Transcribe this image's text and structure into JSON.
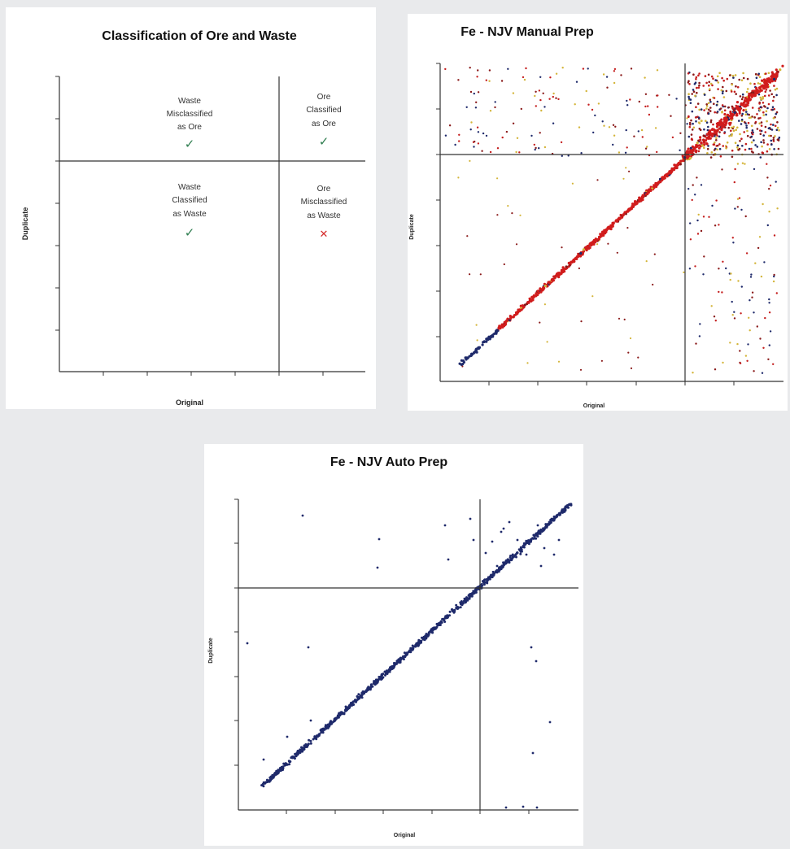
{
  "chart_data": [
    {
      "type": "scatter",
      "title": "Classification of Ore and Waste",
      "xlabel": "Original",
      "ylabel": "Duplicate",
      "quadrants": [
        {
          "position": "top-left",
          "lines": [
            "Waste",
            "Misclassified",
            "as Ore"
          ],
          "mark": "check"
        },
        {
          "position": "top-right",
          "lines": [
            "Ore",
            "Classified",
            "as Ore"
          ],
          "mark": "check"
        },
        {
          "position": "bottom-left",
          "lines": [
            "Waste",
            "Classified",
            "as Waste"
          ],
          "mark": "check"
        },
        {
          "position": "bottom-right",
          "lines": [
            "Ore",
            "Misclassified",
            "as Waste"
          ],
          "mark": "cross"
        }
      ],
      "mark_glyphs": {
        "check": "✓",
        "cross": "✕"
      },
      "colors": {
        "check": "#2e7d4f",
        "cross": "#d42a2a"
      }
    },
    {
      "type": "scatter",
      "title": "Fe - NJV Manual Prep",
      "xlabel": "Original",
      "ylabel": "Duplicate",
      "point_colors": [
        "#c41e1e",
        "#1f2a6b",
        "#d4b53a",
        "#8a1a1a"
      ],
      "trend_color": "#d11c1c"
    },
    {
      "type": "scatter",
      "title": "Fe - NJV Auto Prep",
      "xlabel": "Original",
      "ylabel": "Duplicate",
      "point_colors": [
        "#1f2a6b"
      ],
      "trend_color": "#1f2a6b"
    }
  ]
}
